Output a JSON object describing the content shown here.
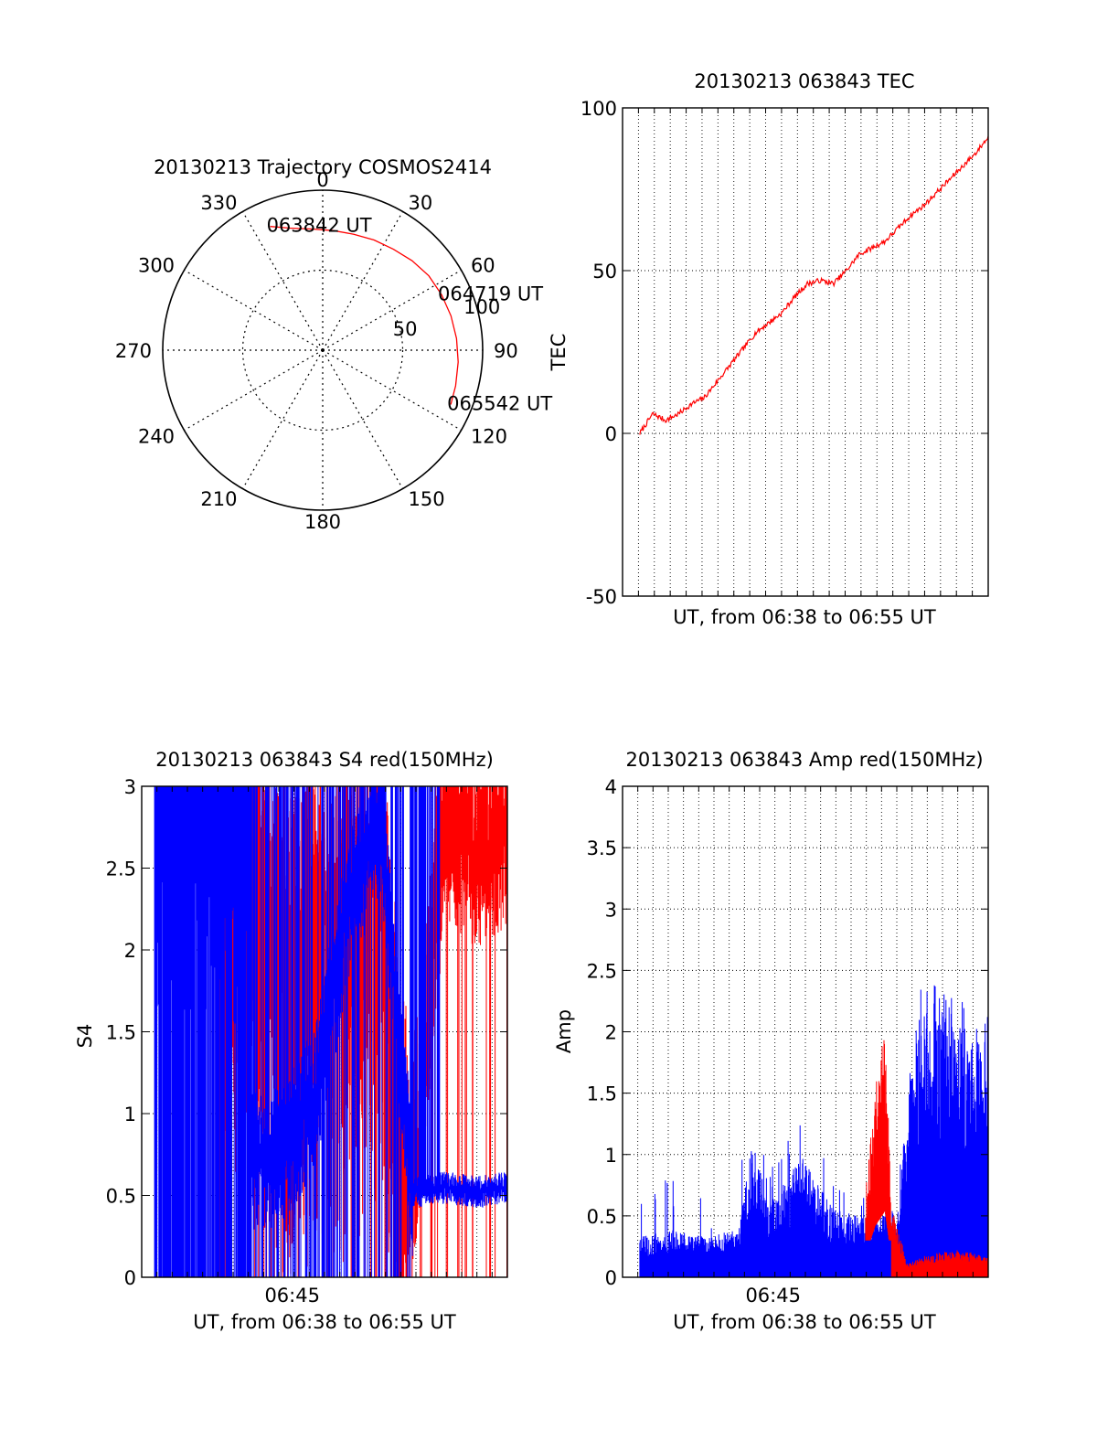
{
  "colors": {
    "primary": "#ff0000",
    "secondary": "#0000ff",
    "axis": "#000000"
  },
  "chart_data": [
    {
      "type": "polar",
      "title": "20130213 Trajectory COSMOS2414",
      "azimuth_labels": [
        "0",
        "30",
        "60",
        "90",
        "120",
        "150",
        "180",
        "210",
        "240",
        "270",
        "300",
        "330"
      ],
      "radial_ticks": [
        50,
        100
      ],
      "radial_labels": [
        "50",
        "100"
      ],
      "trajectory": {
        "points": [
          [
            337,
            84
          ],
          [
            345,
            79
          ],
          [
            355,
            76
          ],
          [
            5,
            75
          ],
          [
            15,
            75
          ],
          [
            25,
            76
          ],
          [
            35,
            77
          ],
          [
            45,
            79
          ],
          [
            55,
            81
          ],
          [
            65,
            82
          ],
          [
            75,
            83
          ],
          [
            85,
            84
          ],
          [
            95,
            85
          ],
          [
            105,
            86
          ],
          [
            113,
            87
          ]
        ],
        "labels": [
          {
            "text": "063842 UT",
            "azimuth": 337,
            "distance": 84
          },
          {
            "text": "064719 UT",
            "azimuth": 65,
            "distance": 82
          },
          {
            "text": "065542 UT",
            "azimuth": 113,
            "distance": 87
          }
        ]
      }
    },
    {
      "type": "line",
      "title": "20130213 063843 TEC",
      "xlabel": "UT, from 06:38 to 06:55 UT",
      "ylabel": "TEC",
      "xlim": [
        6.6333,
        6.9167
      ],
      "ylim": [
        -50,
        100
      ],
      "yticks": [
        -50,
        0,
        50,
        100
      ],
      "grid": true,
      "series": [
        {
          "x": [
            6.6467,
            6.6517,
            6.6567,
            6.6617,
            6.6667,
            6.6767,
            6.6867,
            6.6967,
            6.7067,
            6.7167,
            6.7267,
            6.7367,
            6.7467,
            6.7567,
            6.7667,
            6.7767,
            6.7867,
            6.7967,
            6.8067,
            6.8167,
            6.8267,
            6.8367,
            6.8467,
            6.8567,
            6.8667,
            6.8767,
            6.8867,
            6.8967,
            6.9067,
            6.9167
          ],
          "values": [
            0,
            3,
            6,
            5,
            4,
            6,
            9,
            11,
            16,
            21,
            26,
            31,
            34,
            37,
            42,
            46,
            47,
            46,
            50,
            55,
            57,
            59,
            63,
            67,
            70,
            74,
            78,
            82,
            86,
            91
          ]
        }
      ]
    },
    {
      "type": "line",
      "title": "20130213 063843 S4 red(150MHz)",
      "xlabel": "UT, from 06:38 to 06:55 UT",
      "ylabel": "S4",
      "xlim": [
        6.6333,
        6.9167
      ],
      "ylim": [
        0,
        3
      ],
      "yticks": [
        0,
        0.5,
        1,
        1.5,
        2,
        2.5,
        3
      ],
      "ytick_labels": [
        "0",
        "0.5",
        "1",
        "1.5",
        "2",
        "2.5",
        "3"
      ],
      "xtick_labels": [
        {
          "x": 6.75,
          "label": "06:45"
        }
      ],
      "grid": true,
      "series": [
        {
          "color": "#0000ff",
          "x": [
            6.6433,
            6.6683,
            6.6933,
            6.7183,
            6.7433,
            6.7683,
            6.7933,
            6.8183,
            6.8433,
            6.8683,
            6.8933,
            6.9167
          ],
          "values": [
            3,
            3,
            3,
            0.78,
            0.8,
            1.15,
            2.3,
            2.85,
            0.52,
            0.55,
            0.52,
            0.55
          ]
        },
        {
          "color": "#ff0000",
          "x": [
            6.6883,
            6.7183,
            6.7433,
            6.7683,
            6.7933,
            6.8183,
            6.8333,
            6.8433,
            6.8683,
            6.8933,
            6.9167
          ],
          "values": [
            3,
            2.6,
            2.2,
            2.2,
            2.3,
            2.6,
            1.0,
            0.5,
            2.8,
            2.6,
            2.7
          ]
        }
      ]
    },
    {
      "type": "line",
      "title": "20130213 063843 Amp red(150MHz)",
      "xlabel": "UT, from 06:38 to 06:55 UT",
      "ylabel": "Amp",
      "xlim": [
        6.6333,
        6.9167
      ],
      "ylim": [
        0,
        4
      ],
      "yticks": [
        0,
        0.5,
        1,
        1.5,
        2,
        2.5,
        3,
        3.5,
        4
      ],
      "ytick_labels": [
        "0",
        "0.5",
        "1",
        "1.5",
        "2",
        "2.5",
        "3",
        "3.5",
        "4"
      ],
      "xtick_labels": [
        {
          "x": 6.75,
          "label": "06:45"
        }
      ],
      "grid": true,
      "series": [
        {
          "color": "#0000ff",
          "x": [
            6.6467,
            6.6717,
            6.6967,
            6.7217,
            6.7342,
            6.7467,
            6.7717,
            6.7967,
            6.8217,
            6.8467,
            6.8567,
            6.8717,
            6.8967,
            6.9167
          ],
          "values": [
            0.3,
            0.35,
            0.3,
            0.35,
            1.0,
            0.55,
            0.9,
            0.5,
            0.45,
            0.5,
            1.7,
            2.2,
            2.0,
            1.9
          ]
        },
        {
          "color": "#ff0000",
          "x": [
            6.8217,
            6.8292,
            6.8367,
            6.8417,
            6.8542,
            6.8667,
            6.8917,
            6.9167
          ],
          "values": [
            0.6,
            1.4,
            1.8,
            0.5,
            0.1,
            0.15,
            0.2,
            0.15
          ]
        }
      ]
    }
  ]
}
